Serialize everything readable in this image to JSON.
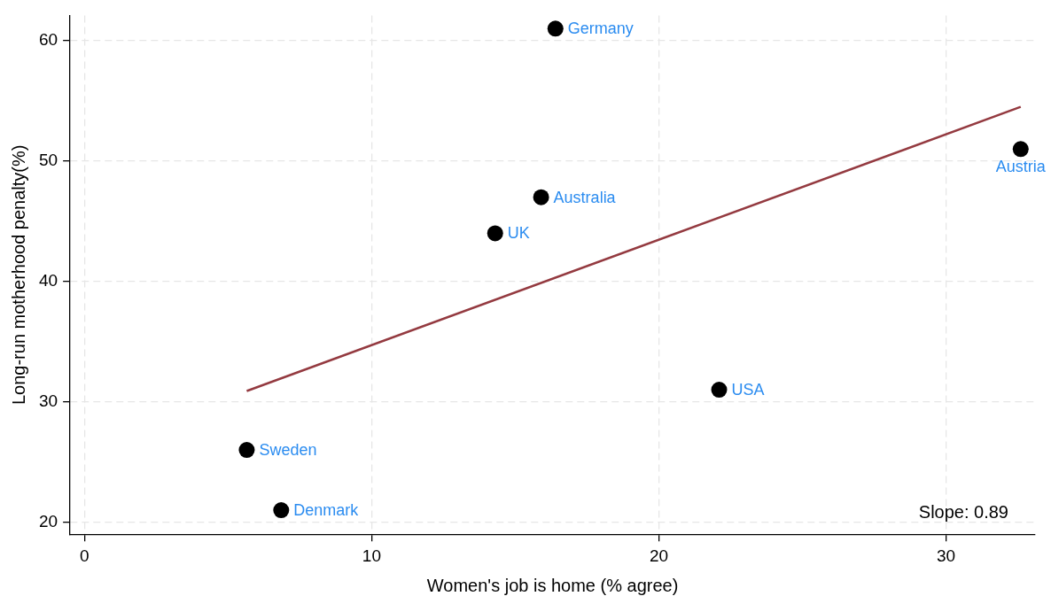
{
  "chart_data": {
    "type": "scatter",
    "xlabel": "Women's job is home (% agree)",
    "ylabel": "Long-run motherhood penalty(%)",
    "xlim": [
      -0.5,
      33.1
    ],
    "xticks": [
      0,
      10,
      20,
      30
    ],
    "ylim": [
      19,
      62.1
    ],
    "yticks": [
      20,
      30,
      40,
      50,
      60
    ],
    "grid": true,
    "legend": false,
    "marker": "circle",
    "series": [
      {
        "type": "scatter",
        "color": "#000000",
        "x": [
          16.4,
          32.6,
          15.9,
          14.3,
          22.1,
          5.65,
          6.85
        ],
        "values": [
          61,
          51,
          47,
          44,
          31,
          26,
          21
        ]
      },
      {
        "type": "line",
        "color": "#943a40",
        "marker": "none",
        "x": [
          5.65,
          32.6
        ],
        "values": [
          30.9,
          54.5
        ]
      }
    ],
    "annotations": [
      {
        "text": "Germany",
        "x": 16.4,
        "y": 61
      },
      {
        "text": "Austria",
        "x": 32.6,
        "y": 51
      },
      {
        "text": "Australia",
        "x": 15.9,
        "y": 47
      },
      {
        "text": "UK",
        "x": 14.3,
        "y": 44
      },
      {
        "text": "USA",
        "x": 22.1,
        "y": 31
      },
      {
        "text": "Sweden",
        "x": 5.65,
        "y": 26
      },
      {
        "text": "Denmark",
        "x": 6.85,
        "y": 21
      },
      "Slope: 0.89"
    ]
  }
}
